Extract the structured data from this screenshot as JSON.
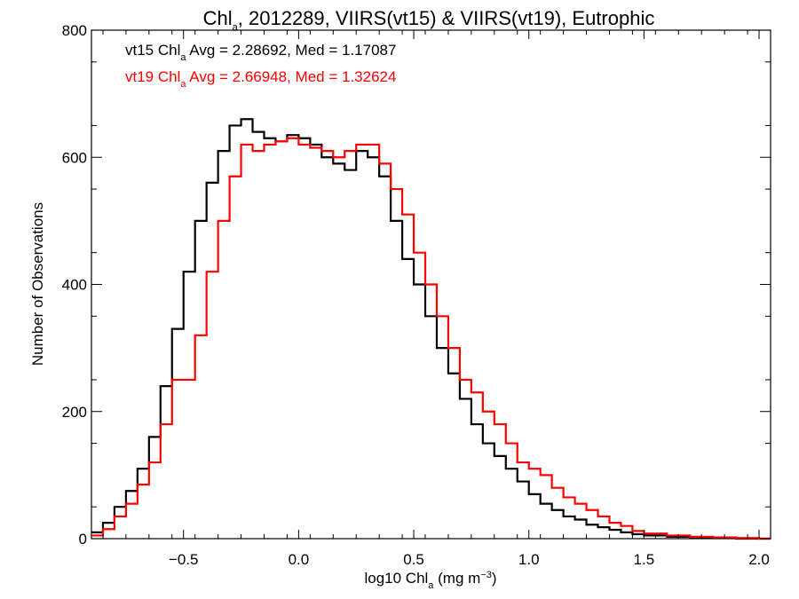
{
  "chart_data": {
    "type": "line",
    "step": true,
    "title": {
      "pre": "Chl",
      "sub": "a",
      "post": ", 2012289, VIIRS(vt15) & VIIRS(vt19), Eutrophic"
    },
    "xlabel": {
      "pre": "log10 Chl",
      "sub": "a",
      "post": " (mg m",
      "sup": "−3",
      "end": ")"
    },
    "ylabel": "Number of Observations",
    "xlim": [
      -0.9,
      2.05
    ],
    "ylim": [
      0,
      800
    ],
    "xticks": [
      -0.5,
      0.0,
      0.5,
      1.0,
      1.5,
      2.0
    ],
    "xtick_labels": [
      "−0.5",
      "0.0",
      "0.5",
      "1.0",
      "1.5",
      "2.0"
    ],
    "yticks": [
      0,
      200,
      400,
      600,
      800
    ],
    "ytick_labels": [
      "0",
      "200",
      "400",
      "600",
      "800"
    ],
    "grid": false,
    "legend_position": "top-left",
    "series": [
      {
        "name": "vt15",
        "color": "#000000",
        "annotation": {
          "pre": "vt15 Chl",
          "sub": "a",
          "post": " Avg = 2.28692, Med = 1.17087"
        },
        "x": [
          -0.9,
          -0.85,
          -0.8,
          -0.75,
          -0.7,
          -0.65,
          -0.6,
          -0.55,
          -0.5,
          -0.45,
          -0.4,
          -0.35,
          -0.3,
          -0.25,
          -0.2,
          -0.15,
          -0.1,
          -0.05,
          0.0,
          0.05,
          0.1,
          0.15,
          0.2,
          0.25,
          0.3,
          0.35,
          0.4,
          0.45,
          0.5,
          0.55,
          0.6,
          0.65,
          0.7,
          0.75,
          0.8,
          0.85,
          0.9,
          0.95,
          1.0,
          1.05,
          1.1,
          1.15,
          1.2,
          1.25,
          1.3,
          1.35,
          1.4,
          1.45,
          1.5,
          1.6,
          1.7,
          1.8,
          1.9,
          2.0
        ],
        "y": [
          10,
          25,
          50,
          75,
          110,
          160,
          240,
          330,
          420,
          500,
          560,
          610,
          650,
          660,
          640,
          630,
          625,
          635,
          630,
          620,
          600,
          590,
          580,
          610,
          600,
          570,
          500,
          440,
          400,
          350,
          300,
          260,
          220,
          180,
          150,
          130,
          110,
          90,
          70,
          55,
          45,
          35,
          30,
          22,
          18,
          14,
          10,
          7,
          5,
          3,
          2,
          1,
          0,
          0
        ]
      },
      {
        "name": "vt19",
        "color": "#ff0000",
        "annotation": {
          "pre": "vt19 Chl",
          "sub": "a",
          "post": " Avg = 2.66948, Med = 1.32624"
        },
        "x": [
          -0.9,
          -0.85,
          -0.8,
          -0.75,
          -0.7,
          -0.65,
          -0.6,
          -0.55,
          -0.5,
          -0.45,
          -0.4,
          -0.35,
          -0.3,
          -0.25,
          -0.2,
          -0.15,
          -0.1,
          -0.05,
          0.0,
          0.05,
          0.1,
          0.15,
          0.2,
          0.25,
          0.3,
          0.35,
          0.4,
          0.45,
          0.5,
          0.55,
          0.6,
          0.65,
          0.7,
          0.75,
          0.8,
          0.85,
          0.9,
          0.95,
          1.0,
          1.05,
          1.1,
          1.15,
          1.2,
          1.25,
          1.3,
          1.35,
          1.4,
          1.45,
          1.5,
          1.6,
          1.7,
          1.8,
          1.9,
          2.0
        ],
        "y": [
          5,
          15,
          35,
          55,
          85,
          120,
          180,
          250,
          250,
          320,
          420,
          500,
          570,
          620,
          610,
          620,
          625,
          630,
          620,
          615,
          610,
          600,
          610,
          620,
          620,
          590,
          550,
          510,
          450,
          400,
          350,
          300,
          250,
          230,
          200,
          180,
          150,
          120,
          110,
          100,
          80,
          65,
          55,
          45,
          35,
          25,
          20,
          12,
          8,
          5,
          3,
          2,
          1,
          0
        ]
      }
    ]
  }
}
